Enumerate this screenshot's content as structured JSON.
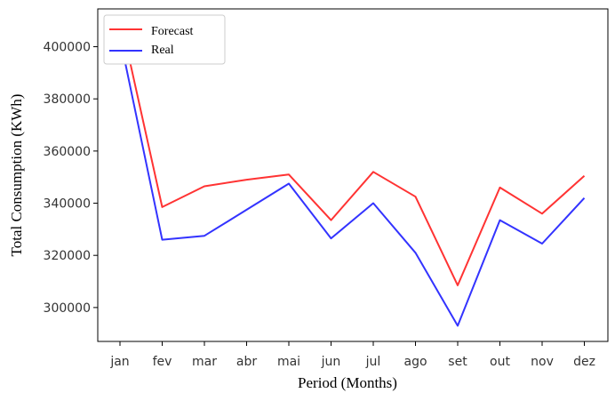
{
  "chart_data": {
    "type": "line",
    "categories": [
      "jan",
      "fev",
      "mar",
      "abr",
      "mai",
      "jun",
      "jul",
      "ago",
      "set",
      "out",
      "nov",
      "dez"
    ],
    "series": [
      {
        "name": "Forecast",
        "color": "#ff3333",
        "values": [
          411500,
          338500,
          346500,
          349000,
          351000,
          333500,
          352000,
          342500,
          308500,
          346000,
          336000,
          350500
        ]
      },
      {
        "name": "Real",
        "color": "#3333ff",
        "values": [
          403500,
          326000,
          327500,
          337500,
          347500,
          326500,
          340000,
          321000,
          293000,
          333500,
          324500,
          342000
        ]
      }
    ],
    "xlabel": "Period (Months)",
    "ylabel": "Total Consumption (KWh)",
    "yticks": [
      300000,
      320000,
      340000,
      360000,
      380000,
      400000
    ],
    "ylim": [
      287000,
      414500
    ],
    "grid": false,
    "legend_position": "top-left"
  }
}
